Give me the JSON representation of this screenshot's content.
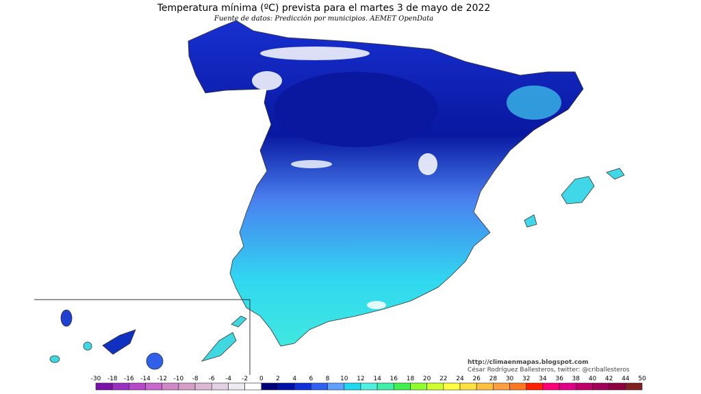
{
  "header": {
    "title": "Temperatura mínima (ºC) prevista para el martes 3 de mayo de 2022",
    "subtitle": "Fuente de datos: Predicción por municipios. AEMET OpenData"
  },
  "credits": [
    "http://climaenmapas.blogspot.com",
    "César Rodríguez Ballesteros, twitter: @criballesteros"
  ],
  "legend": {
    "labels": [
      -30,
      -18,
      -16,
      -14,
      -12,
      -10,
      -8,
      -6,
      -4,
      -2,
      0,
      2,
      4,
      6,
      8,
      10,
      12,
      14,
      16,
      18,
      20,
      22,
      24,
      26,
      28,
      30,
      32,
      34,
      36,
      38,
      40,
      42,
      44,
      50
    ],
    "colors": [
      "#7a12a8",
      "#9a30c0",
      "#b448c8",
      "#c868cc",
      "#d088c8",
      "#d4a0c8",
      "#dcb8d4",
      "#e4d0e4",
      "#eeeaf2",
      "#ffffff",
      "#00007a",
      "#0010a8",
      "#1030d8",
      "#3060f0",
      "#60a0ff",
      "#20d8f0",
      "#50f0e0",
      "#40f0a8",
      "#40f050",
      "#90ff30",
      "#d0ff30",
      "#ffff40",
      "#ffe040",
      "#ffc040",
      "#ffa040",
      "#ff7820",
      "#ff2000",
      "#ff0078",
      "#e00088",
      "#c00068",
      "#a00058",
      "#900040",
      "#802020"
    ]
  }
}
